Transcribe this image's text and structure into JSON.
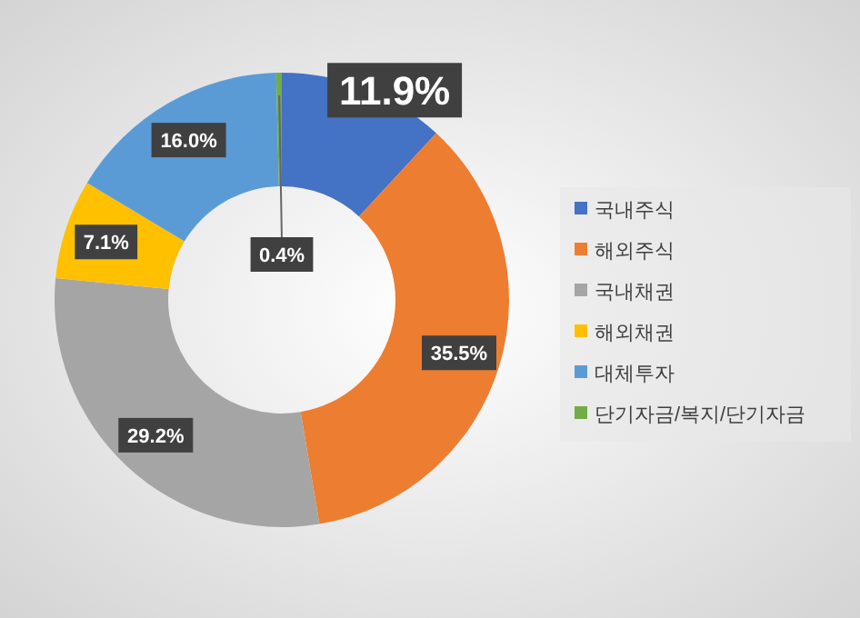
{
  "chart_data": {
    "type": "donut",
    "categories": [
      "국내주식",
      "해외주식",
      "국내채권",
      "해외채권",
      "대체투자",
      "단기자금/복지/단기자금"
    ],
    "values": [
      11.9,
      35.5,
      29.2,
      7.1,
      16.0,
      0.4
    ],
    "colors": [
      "#4472c4",
      "#ed7d31",
      "#a5a5a5",
      "#ffc000",
      "#5b9bd5",
      "#70ad47"
    ],
    "value_labels": [
      "11.9%",
      "35.5%",
      "29.2%",
      "7.1%",
      "16.0%",
      "0.4%"
    ],
    "legend": "right"
  }
}
